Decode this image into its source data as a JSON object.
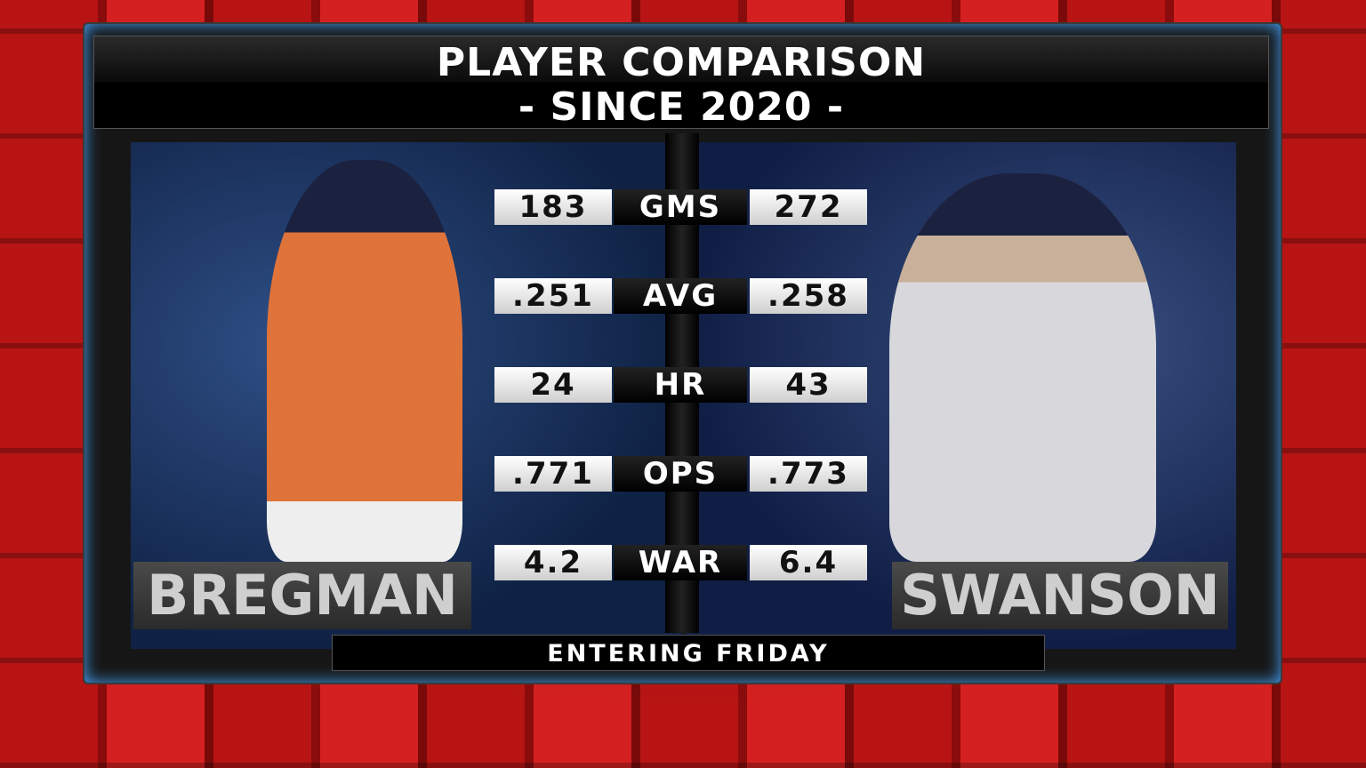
{
  "header": {
    "title": "PLAYER COMPARISON",
    "subtitle": "- SINCE 2020 -"
  },
  "players": {
    "left": "BREGMAN",
    "right": "SWANSON"
  },
  "table": {
    "rows": [
      [
        "183",
        "GMS",
        "272"
      ],
      [
        ".251",
        "AVG",
        ".258"
      ],
      [
        "24",
        "HR",
        "43"
      ],
      [
        ".771",
        "OPS",
        ".773"
      ],
      [
        "4.2",
        "WAR",
        "6.4"
      ]
    ]
  },
  "footer": "ENTERING FRIDAY"
}
